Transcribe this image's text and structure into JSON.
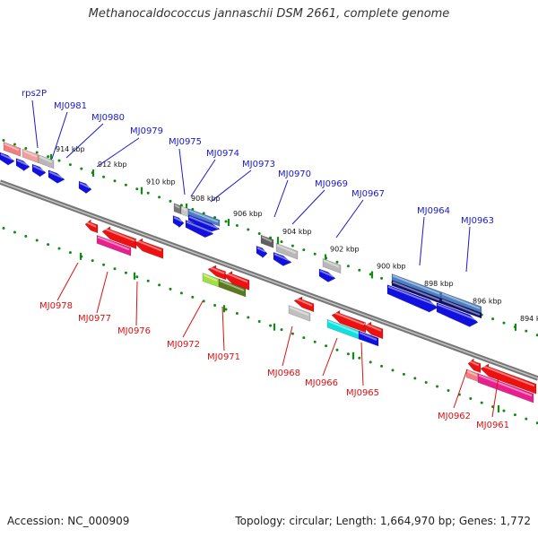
{
  "title": "Methanocaldococcus jannaschii DSM 2661, complete genome",
  "footer": {
    "accession": "Accession: NC_000909",
    "topology": "Topology: circular; Length: 1,664,970 bp; Genes: 1,772"
  },
  "colors": {
    "backbone": "#888888",
    "tick": "#138a13",
    "forward_label": "#1a1acc",
    "reverse_label": "#dd1111"
  },
  "kbp_labels": [
    "914 kbp",
    "912 kbp",
    "910 kbp",
    "908 kbp",
    "906 kbp",
    "904 kbp",
    "902 kbp",
    "900 kbp",
    "898 kbp",
    "896 kbp",
    "894 kbp"
  ],
  "forward_genes": [
    "rps2P",
    "MJ0981",
    "MJ0980",
    "MJ0979",
    "MJ0975",
    "MJ0974",
    "MJ0973",
    "MJ0970",
    "MJ0969",
    "MJ0967",
    "MJ0964",
    "MJ0963"
  ],
  "reverse_genes": [
    "MJ0978",
    "MJ0977",
    "MJ0976",
    "MJ0972",
    "MJ0971",
    "MJ0968",
    "MJ0966",
    "MJ0965",
    "MJ0962",
    "MJ0961"
  ]
}
